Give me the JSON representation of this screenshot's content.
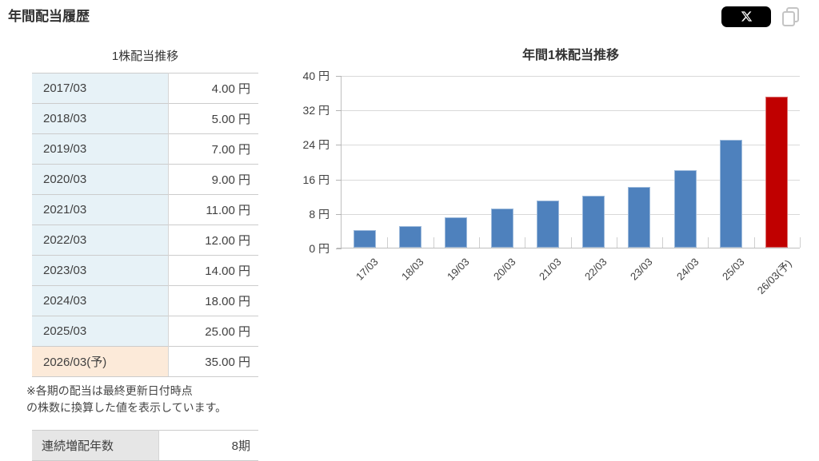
{
  "page": {
    "title": "年間配当履歴"
  },
  "header": {
    "share_button_label": "X",
    "copy_icon": "copy-icon"
  },
  "dividend_table": {
    "title": "1株配当推移",
    "rows": [
      {
        "period": "2017/03",
        "value": "4.00 円",
        "forecast": false
      },
      {
        "period": "2018/03",
        "value": "5.00 円",
        "forecast": false
      },
      {
        "period": "2019/03",
        "value": "7.00 円",
        "forecast": false
      },
      {
        "period": "2020/03",
        "value": "9.00 円",
        "forecast": false
      },
      {
        "period": "2021/03",
        "value": "11.00 円",
        "forecast": false
      },
      {
        "period": "2022/03",
        "value": "12.00 円",
        "forecast": false
      },
      {
        "period": "2023/03",
        "value": "14.00 円",
        "forecast": false
      },
      {
        "period": "2024/03",
        "value": "18.00 円",
        "forecast": false
      },
      {
        "period": "2025/03",
        "value": "25.00 円",
        "forecast": false
      },
      {
        "period": "2026/03(予)",
        "value": "35.00 円",
        "forecast": true
      }
    ],
    "footnote_lines": [
      "※各期の配当は最終更新日付時点",
      "の株数に換算した値を表示しています。"
    ]
  },
  "streak_table": {
    "label": "連続増配年数",
    "value": "8期"
  },
  "chart_data": {
    "type": "bar",
    "title": "年間1株配当推移",
    "categories": [
      "17/03",
      "18/03",
      "19/03",
      "20/03",
      "21/03",
      "22/03",
      "23/03",
      "24/03",
      "25/03",
      "26/03(予)"
    ],
    "values": [
      4,
      5,
      7,
      9,
      11,
      12,
      14,
      18,
      25,
      35
    ],
    "unit": "円",
    "ylim": [
      0,
      40
    ],
    "yticks": [
      0,
      8,
      16,
      24,
      32,
      40
    ],
    "ytick_labels": [
      "0 円",
      "8 円",
      "16 円",
      "24 円",
      "32 円",
      "40 円"
    ],
    "xlabel": "",
    "ylabel": "",
    "grid": true,
    "legend": "none",
    "bar_color": "#4e81bd",
    "forecast_bar_color": "#c00000",
    "forecast_index": 9
  },
  "colors": {
    "table_period_bg": "#e7f2f7",
    "table_forecast_bg": "#fcead9",
    "streak_label_bg": "#e6e6e6",
    "bar_blue": "#4e81bd",
    "bar_red": "#c00000",
    "share_button_bg": "#000000"
  }
}
